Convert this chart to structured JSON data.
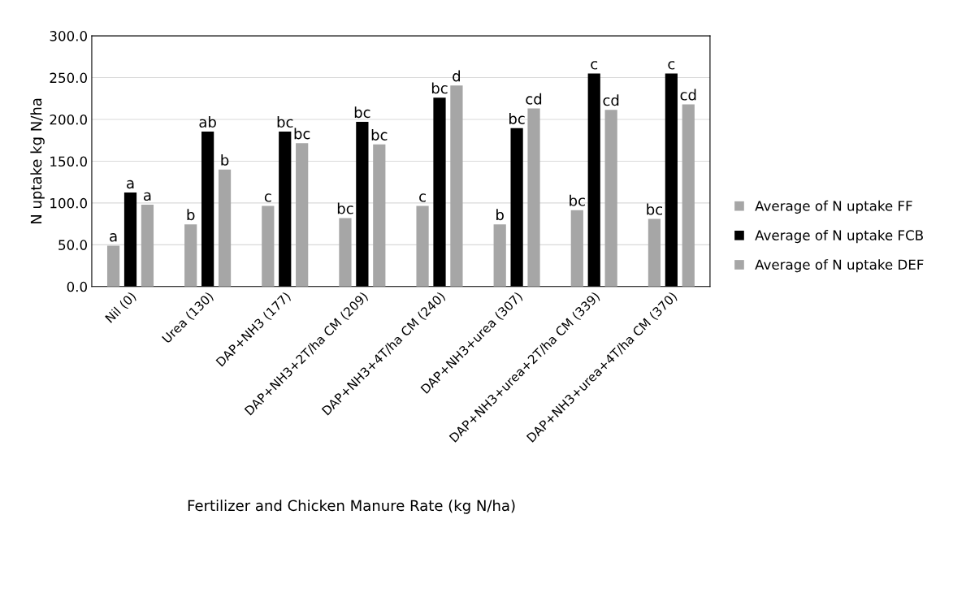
{
  "chart_data": {
    "type": "bar",
    "xlabel": "Fertilizer and Chicken Manure Rate (kg N/ha)",
    "ylabel": "N uptake kg N/ha",
    "categories": [
      "Nil (0)",
      "Urea (130)",
      "DAP+NH3 (177)",
      "DAP+NH3+2T/ha CM (209)",
      "DAP+NH3+4T/ha CM (240)",
      "DAP+NH3+urea (307)",
      "DAP+NH3+urea+2T/ha CM (339)",
      "DAP+NH3+urea+4T/ha CM (370)"
    ],
    "series": [
      {
        "name": "Average of N uptake FF",
        "color": "#a6a6a6",
        "values": [
          49,
          74.5,
          96.5,
          82,
          96.5,
          74.5,
          91.5,
          81
        ],
        "value_labels": [
          "a",
          "b",
          "c",
          "bc",
          "c",
          "b",
          "bc",
          "bc"
        ]
      },
      {
        "name": "Average of N uptake FCB",
        "color": "#000000",
        "values": [
          112.5,
          185.5,
          185.5,
          197,
          226,
          189.5,
          255,
          255
        ],
        "value_labels": [
          "a",
          "ab",
          "bc",
          "bc",
          "bc",
          "bc",
          "c",
          "c"
        ]
      },
      {
        "name": "Average of N uptake DEF",
        "color": "#a6a6a6",
        "values": [
          98,
          140,
          171.5,
          170,
          240.5,
          213,
          211.5,
          218
        ],
        "value_labels": [
          "a",
          "b",
          "bc",
          "bc",
          "d",
          "cd",
          "cd",
          "cd"
        ]
      }
    ],
    "ylim": [
      0,
      300
    ],
    "yticks": [
      {
        "value": 0,
        "label": "0.0"
      },
      {
        "value": 50,
        "label": "50.0"
      },
      {
        "value": 100,
        "label": "100.0"
      },
      {
        "value": 150,
        "label": "150.0"
      },
      {
        "value": 200,
        "label": "200.0"
      },
      {
        "value": 250,
        "label": "250.0"
      },
      {
        "value": 300,
        "label": "300.0"
      }
    ],
    "grid": "y",
    "legend": "right"
  }
}
